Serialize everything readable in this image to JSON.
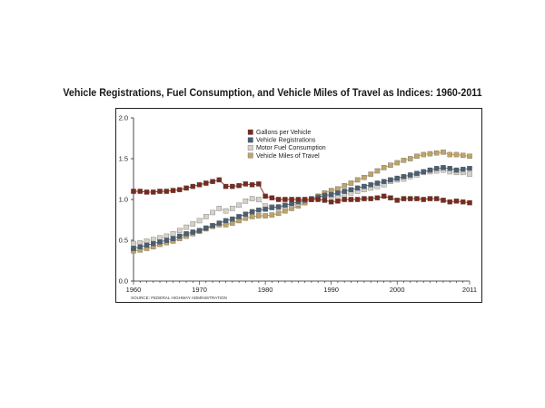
{
  "chart_data": {
    "type": "line",
    "title": "Vehicle Registrations, Fuel Consumption, and Vehicle Miles of Travel as Indices: 1960-2011",
    "source": "SOURCE: FEDERAL HIGHWAY ADMINISTRATION",
    "xlabel": "",
    "ylabel": "",
    "xlim": [
      1960,
      2011
    ],
    "ylim": [
      0,
      2.0
    ],
    "x_ticks": [
      1960,
      1970,
      1980,
      1990,
      2000,
      2011
    ],
    "y_ticks": [
      "0.0",
      "0.5",
      "1.0",
      "1.5",
      "2.0"
    ],
    "legend_position": "top-center",
    "x": [
      1960,
      1961,
      1962,
      1963,
      1964,
      1965,
      1966,
      1967,
      1968,
      1969,
      1970,
      1971,
      1972,
      1973,
      1974,
      1975,
      1976,
      1977,
      1978,
      1979,
      1980,
      1981,
      1982,
      1983,
      1984,
      1985,
      1986,
      1987,
      1988,
      1989,
      1990,
      1991,
      1992,
      1993,
      1994,
      1995,
      1996,
      1997,
      1998,
      1999,
      2000,
      2001,
      2002,
      2003,
      2004,
      2005,
      2006,
      2007,
      2008,
      2009,
      2010,
      2011
    ],
    "series": [
      {
        "name": "Gallons per Vehicle",
        "color": "#7a2a1e",
        "values": [
          1.1,
          1.1,
          1.09,
          1.09,
          1.1,
          1.1,
          1.11,
          1.12,
          1.14,
          1.16,
          1.18,
          1.2,
          1.22,
          1.24,
          1.16,
          1.16,
          1.17,
          1.19,
          1.18,
          1.19,
          1.04,
          1.02,
          1.0,
          1.0,
          1.0,
          1.0,
          1.0,
          1.0,
          1.0,
          0.99,
          0.97,
          0.98,
          1.0,
          1.0,
          1.0,
          1.01,
          1.01,
          1.02,
          1.04,
          1.02,
          0.99,
          1.01,
          1.01,
          1.01,
          1.0,
          1.01,
          1.01,
          0.99,
          0.97,
          0.98,
          0.97,
          0.96
        ]
      },
      {
        "name": "Vehicle Registrations",
        "color": "#4a5f73",
        "values": [
          0.4,
          0.42,
          0.44,
          0.46,
          0.48,
          0.5,
          0.52,
          0.55,
          0.58,
          0.6,
          0.62,
          0.65,
          0.68,
          0.71,
          0.74,
          0.76,
          0.79,
          0.82,
          0.85,
          0.87,
          0.88,
          0.9,
          0.91,
          0.93,
          0.95,
          0.97,
          0.99,
          1.01,
          1.03,
          1.05,
          1.06,
          1.08,
          1.1,
          1.12,
          1.14,
          1.16,
          1.18,
          1.2,
          1.22,
          1.24,
          1.26,
          1.28,
          1.3,
          1.32,
          1.34,
          1.36,
          1.38,
          1.39,
          1.38,
          1.36,
          1.37,
          1.38
        ]
      },
      {
        "name": "Motor Fuel Consumption",
        "color": "#d6d1c8",
        "values": [
          0.46,
          0.47,
          0.49,
          0.51,
          0.53,
          0.55,
          0.58,
          0.62,
          0.66,
          0.7,
          0.74,
          0.79,
          0.84,
          0.89,
          0.86,
          0.89,
          0.93,
          0.98,
          1.01,
          1.0,
          0.92,
          0.91,
          0.9,
          0.91,
          0.93,
          0.95,
          0.98,
          1.0,
          1.02,
          1.04,
          1.04,
          1.03,
          1.06,
          1.08,
          1.1,
          1.12,
          1.14,
          1.16,
          1.18,
          1.22,
          1.24,
          1.25,
          1.28,
          1.3,
          1.33,
          1.34,
          1.35,
          1.36,
          1.34,
          1.33,
          1.33,
          1.31
        ]
      },
      {
        "name": "Vehicle Miles of Travel",
        "color": "#bfa467",
        "values": [
          0.37,
          0.38,
          0.4,
          0.42,
          0.45,
          0.47,
          0.49,
          0.52,
          0.55,
          0.58,
          0.61,
          0.64,
          0.67,
          0.69,
          0.69,
          0.71,
          0.74,
          0.77,
          0.79,
          0.8,
          0.8,
          0.81,
          0.83,
          0.86,
          0.89,
          0.92,
          0.96,
          1.0,
          1.04,
          1.08,
          1.11,
          1.13,
          1.17,
          1.2,
          1.24,
          1.27,
          1.31,
          1.35,
          1.39,
          1.42,
          1.45,
          1.48,
          1.5,
          1.53,
          1.55,
          1.56,
          1.57,
          1.58,
          1.55,
          1.55,
          1.54,
          1.53
        ]
      }
    ]
  }
}
